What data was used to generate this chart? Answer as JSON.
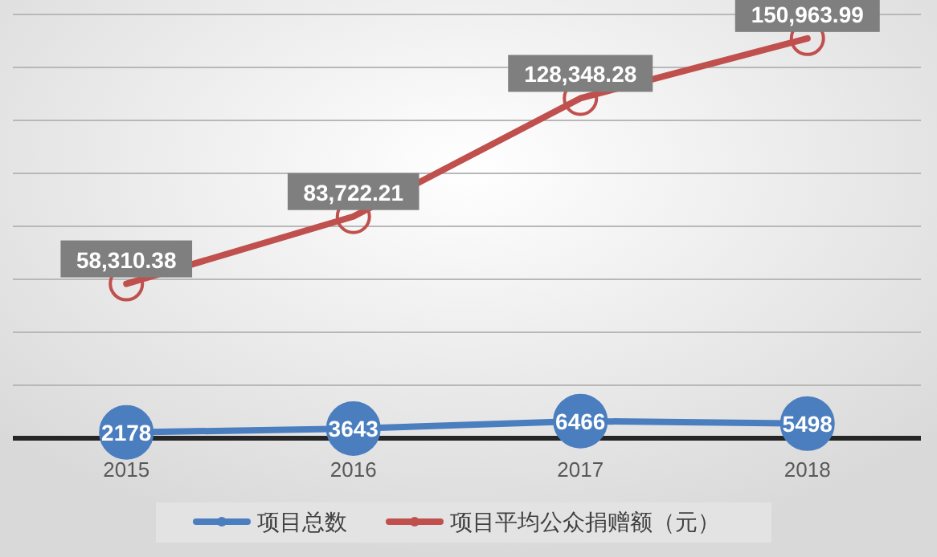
{
  "chart_data": {
    "type": "line",
    "categories": [
      "2015",
      "2016",
      "2017",
      "2018"
    ],
    "series": [
      {
        "name": "项目总数",
        "color": "#4a7ebf",
        "values": [
          2178,
          3643,
          6466,
          5498
        ]
      },
      {
        "name": "项目平均公众捐赠额（元）",
        "color": "#c0504d",
        "values": [
          58310.38,
          83722.21,
          128348.28,
          150963.99
        ],
        "value_labels": [
          "58,310.38",
          "83,722.21",
          "128,348.28",
          "150,963.99"
        ]
      }
    ],
    "ylim": [
      0,
      160000
    ],
    "yticks": [
      {
        "value": 0,
        "label": null
      },
      {
        "value": 20000,
        "label": null
      },
      {
        "value": 40000,
        "label": null
      },
      {
        "value": 60000,
        "label": null
      },
      {
        "value": 80000,
        "label": null
      },
      {
        "value": 100000,
        "label": null
      },
      {
        "value": 120000,
        "label": null
      },
      {
        "value": 140000,
        "label": null
      },
      {
        "value": 160000,
        "label": null
      }
    ],
    "grid": "y",
    "legend": "bottom",
    "marker": "circle",
    "line_style": "solid",
    "data_labels": true
  }
}
